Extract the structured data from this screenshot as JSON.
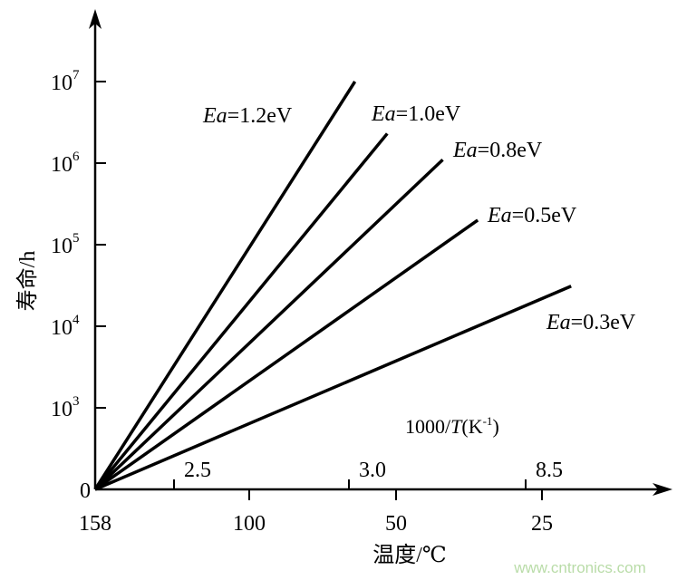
{
  "chart_data": {
    "type": "line",
    "title": "",
    "xlabel": "温度/℃",
    "ylabel": "寿命/h",
    "x_secondary_label": {
      "prefix": "1000/",
      "var": "T",
      "unit": "(K",
      "exp": "-1",
      "close": ")"
    },
    "x_ticks": [
      "158",
      "100",
      "50",
      "25"
    ],
    "x_secondary_ticks": [
      "2.5",
      "3.0",
      "8.5"
    ],
    "y_ticks": [
      {
        "base": "0",
        "exp": ""
      },
      {
        "base": "10",
        "exp": "3"
      },
      {
        "base": "10",
        "exp": "4"
      },
      {
        "base": "10",
        "exp": "5"
      },
      {
        "base": "10",
        "exp": "6"
      },
      {
        "base": "10",
        "exp": "7"
      }
    ],
    "y_scale": "log",
    "grid": false,
    "series": [
      {
        "name": "Ea=1.2eV",
        "label_var": "Ea",
        "label_val": "=1.2eV",
        "x": [
          158,
          64
        ],
        "y": [
          100,
          10000000
        ]
      },
      {
        "name": "Ea=1.0eV",
        "label_var": "Ea",
        "label_val": "=1.0eV",
        "x": [
          158,
          53
        ],
        "y": [
          100,
          2300000
        ]
      },
      {
        "name": "Ea=0.8eV",
        "label_var": "Ea",
        "label_val": "=0.8eV",
        "x": [
          158,
          42
        ],
        "y": [
          100,
          1100000
        ]
      },
      {
        "name": "Ea=0.5eV",
        "label_var": "Ea",
        "label_val": "=0.5eV",
        "x": [
          158,
          36
        ],
        "y": [
          100,
          200000
        ]
      },
      {
        "name": "Ea=0.3eV",
        "label_var": "Ea",
        "label_val": "=0.3eV",
        "x": [
          158,
          20
        ],
        "y": [
          100,
          31000
        ]
      }
    ],
    "line_color": "#000000"
  },
  "watermark": "www.cntronics.com",
  "watermark_color": "#b9dca8"
}
